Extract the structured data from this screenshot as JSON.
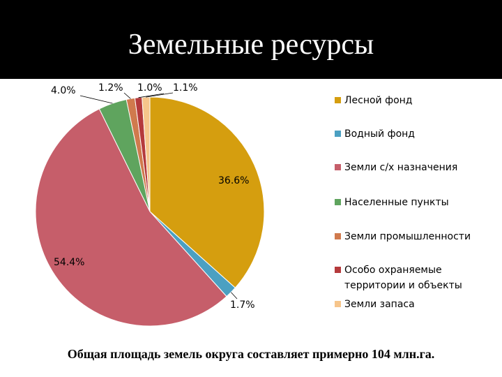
{
  "title": "Земельные ресурсы",
  "footer": "Общая площадь земель округа составляет примерно 104 млн.га.",
  "chart_data": {
    "type": "pie",
    "title": "Земельные ресурсы",
    "legend_position": "right",
    "slices": [
      {
        "name": "Лесной фонд",
        "value": 36.6,
        "label": "36.6%",
        "color": "#D59E0F"
      },
      {
        "name": "Водный фонд",
        "value": 1.7,
        "label": "1.7%",
        "color": "#4BA0C2"
      },
      {
        "name": "Земли с/х назначения",
        "value": 54.4,
        "label": "54.4%",
        "color": "#C65E6A"
      },
      {
        "name": "Населенные пункты",
        "value": 4.0,
        "label": "4.0%",
        "color": "#5FA45E"
      },
      {
        "name": "Земли промышленности",
        "value": 1.2,
        "label": "1.2%",
        "color": "#D07A4D"
      },
      {
        "name": "Особо охраняемые\nтерритории и объекты",
        "value": 1.0,
        "label": "1.0%",
        "color": "#B53A3C"
      },
      {
        "name": "Земли запаса",
        "value": 1.1,
        "label": "1.1%",
        "color": "#F6C58B"
      }
    ]
  }
}
